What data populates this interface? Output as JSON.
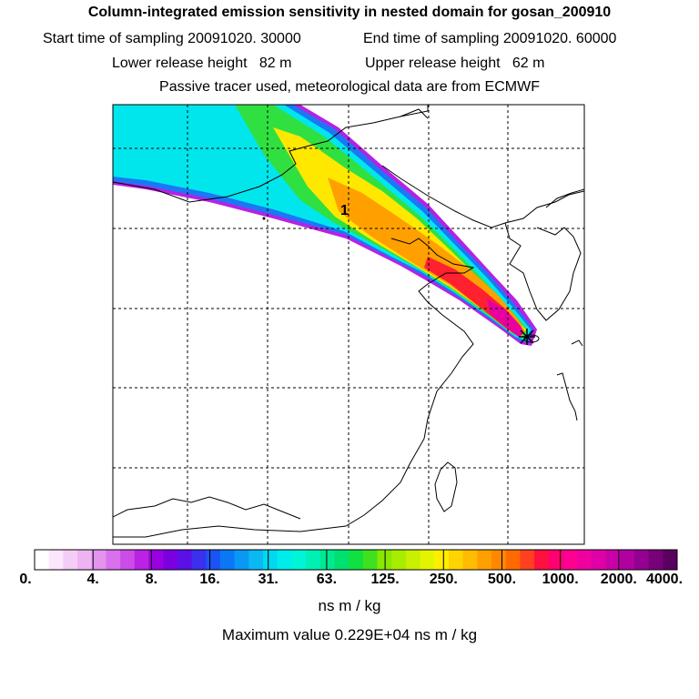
{
  "header": {
    "title": "Column-integrated emission sensitivity in nested domain for gosan_200910",
    "sampling_start": "Start time of sampling 20091020. 30000",
    "sampling_end": "End time of sampling 20091020. 60000",
    "lower_release": "Lower release height   82 m",
    "upper_release": "Upper release height   62 m",
    "tracer_note": "Passive tracer used, meteorological data are from ECMWF"
  },
  "map": {
    "trajectory_label": "1",
    "receptor_marker": "star"
  },
  "colorbar": {
    "ticks": [
      "0.",
      "4.",
      "8.",
      "16.",
      "31.",
      "63.",
      "125.",
      "250.",
      "500.",
      "1000.",
      "2000.",
      "4000."
    ],
    "colors": [
      "#ffffff",
      "#fbe6fb",
      "#f4cdf6",
      "#eeb3f2",
      "#e394ee",
      "#d970ec",
      "#cc4ce8",
      "#bb22e4",
      "#9b00e0",
      "#7a00e0",
      "#5a10e6",
      "#3a30ee",
      "#1a55f4",
      "#0a78f6",
      "#0a98f4",
      "#0ab8f4",
      "#00d8f0",
      "#00ecea",
      "#00f4d6",
      "#00f0b4",
      "#00e890",
      "#00e070",
      "#10e040",
      "#40e020",
      "#88e800",
      "#a8ec00",
      "#c8f000",
      "#e4f400",
      "#ffee00",
      "#ffd400",
      "#ffbc00",
      "#ffa000",
      "#ff8800",
      "#ff6a00",
      "#ff4020",
      "#ff1040",
      "#ff0070",
      "#ff0090",
      "#f000a0",
      "#e000a8",
      "#c800a8",
      "#b000a0",
      "#940090",
      "#780078",
      "#5a0060"
    ]
  },
  "units_label": "ns m / kg",
  "max_value_label": "Maximum value  0.229E+04 ns m / kg"
}
